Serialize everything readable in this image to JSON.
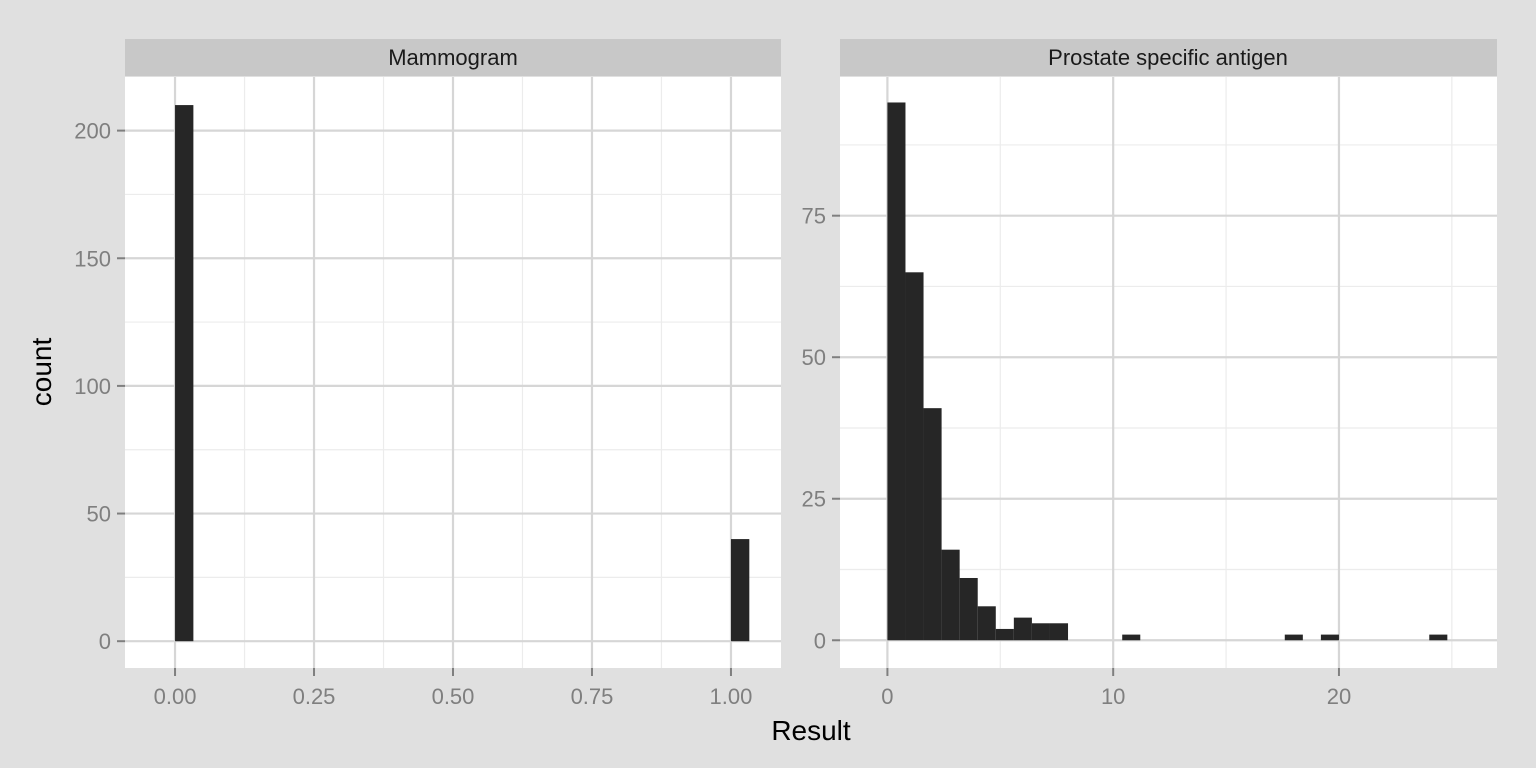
{
  "chart_data": {
    "type": "bar",
    "xlabel": "Result",
    "ylabel": "count",
    "grid": true,
    "panels": [
      {
        "title": "Mammogram",
        "xlim": [
          -0.09,
          1.09
        ],
        "ylim": [
          -10.5,
          221
        ],
        "xticks": [
          0.0,
          0.25,
          0.5,
          0.75,
          1.0
        ],
        "xtick_labels": [
          "0.00",
          "0.25",
          "0.50",
          "0.75",
          "1.00"
        ],
        "yticks": [
          0,
          50,
          100,
          150,
          200
        ],
        "ytick_labels": [
          "0",
          "50",
          "100",
          "150",
          "200"
        ],
        "bins": [
          {
            "x0": 0.0,
            "x1": 0.033,
            "count": 210
          },
          {
            "x0": 1.0,
            "x1": 1.033,
            "count": 40
          }
        ]
      },
      {
        "title": "Prostate specific antigen",
        "xlim": [
          -2.1,
          27.0
        ],
        "ylim": [
          -4.9,
          99.5
        ],
        "xticks": [
          0,
          10,
          20
        ],
        "xtick_labels": [
          "0",
          "10",
          "20"
        ],
        "yticks": [
          0,
          25,
          50,
          75
        ],
        "ytick_labels": [
          "0",
          "25",
          "50",
          "75"
        ],
        "bins": [
          {
            "x0": 0.0,
            "x1": 0.8,
            "count": 95
          },
          {
            "x0": 0.8,
            "x1": 1.6,
            "count": 65
          },
          {
            "x0": 1.6,
            "x1": 2.4,
            "count": 41
          },
          {
            "x0": 2.4,
            "x1": 3.2,
            "count": 16
          },
          {
            "x0": 3.2,
            "x1": 4.0,
            "count": 11
          },
          {
            "x0": 4.0,
            "x1": 4.8,
            "count": 6
          },
          {
            "x0": 4.8,
            "x1": 5.6,
            "count": 2
          },
          {
            "x0": 5.6,
            "x1": 6.4,
            "count": 4
          },
          {
            "x0": 6.4,
            "x1": 7.2,
            "count": 3
          },
          {
            "x0": 7.2,
            "x1": 8.0,
            "count": 3
          },
          {
            "x0": 10.4,
            "x1": 11.2,
            "count": 1
          },
          {
            "x0": 17.6,
            "x1": 18.4,
            "count": 1
          },
          {
            "x0": 19.2,
            "x1": 20.0,
            "count": 1
          },
          {
            "x0": 24.0,
            "x1": 24.8,
            "count": 1
          }
        ]
      }
    ]
  },
  "colors": {
    "background": "#e0e0e0",
    "panel": "#ffffff",
    "strip": "#c8c8c8",
    "grid_major": "#d6d6d6",
    "grid_minor": "#ececec",
    "bar": "#262626",
    "tick_text": "#7f7f7f"
  }
}
